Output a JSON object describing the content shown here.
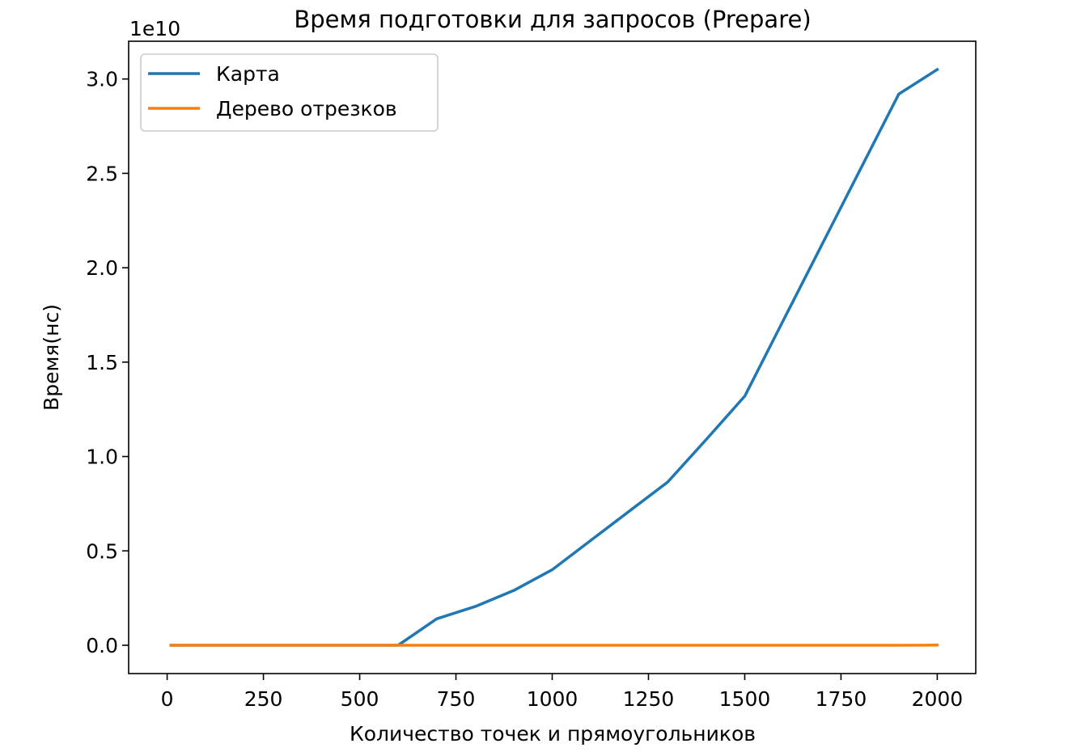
{
  "chart_data": {
    "type": "line",
    "title": "Время подготовки для запросов (Prepare)",
    "xlabel": "Количество точек и прямоугольников",
    "ylabel": "Время(нс)",
    "y_offset_text": "1e10",
    "y_scale": 10000000000,
    "xlim": [
      -100,
      2100
    ],
    "ylim": [
      -0.15,
      3.2
    ],
    "x_ticks": [
      0,
      250,
      500,
      750,
      1000,
      1250,
      1500,
      1750,
      2000
    ],
    "x_tick_labels": [
      "0",
      "250",
      "500",
      "750",
      "1000",
      "1250",
      "1500",
      "1750",
      "2000"
    ],
    "y_ticks": [
      0.0,
      0.5,
      1.0,
      1.5,
      2.0,
      2.5,
      3.0
    ],
    "y_tick_labels": [
      "0.0",
      "0.5",
      "1.0",
      "1.5",
      "2.0",
      "2.5",
      "3.0"
    ],
    "grid": false,
    "legend_position": "upper-left",
    "series": [
      {
        "name": "Карта",
        "color": "#1f77b4",
        "x": [
          10,
          100,
          200,
          300,
          400,
          500,
          600,
          700,
          800,
          900,
          1000,
          1100,
          1200,
          1300,
          1400,
          1500,
          1600,
          1700,
          1800,
          1900,
          2000
        ],
        "y": [
          0.0,
          0.0,
          0.0,
          0.0,
          0.0,
          0.0,
          0.0,
          0.14,
          0.205,
          0.29,
          0.4,
          0.555,
          0.71,
          0.865,
          1.09,
          1.32,
          1.72,
          2.12,
          2.52,
          2.92,
          3.05
        ]
      },
      {
        "name": "Дерево отрезков",
        "color": "#ff7f0e",
        "x": [
          10,
          100,
          200,
          300,
          400,
          500,
          600,
          700,
          800,
          900,
          1000,
          1100,
          1200,
          1300,
          1400,
          1500,
          1600,
          1700,
          1800,
          1900,
          2000
        ],
        "y": [
          0.0,
          0.0,
          0.0,
          0.0,
          0.0,
          0.0,
          0.0,
          0.0,
          0.0,
          0.0,
          0.0,
          0.0,
          0.0,
          0.0,
          0.0,
          0.0,
          0.0,
          0.0,
          0.0,
          0.0,
          0.001
        ]
      }
    ]
  }
}
